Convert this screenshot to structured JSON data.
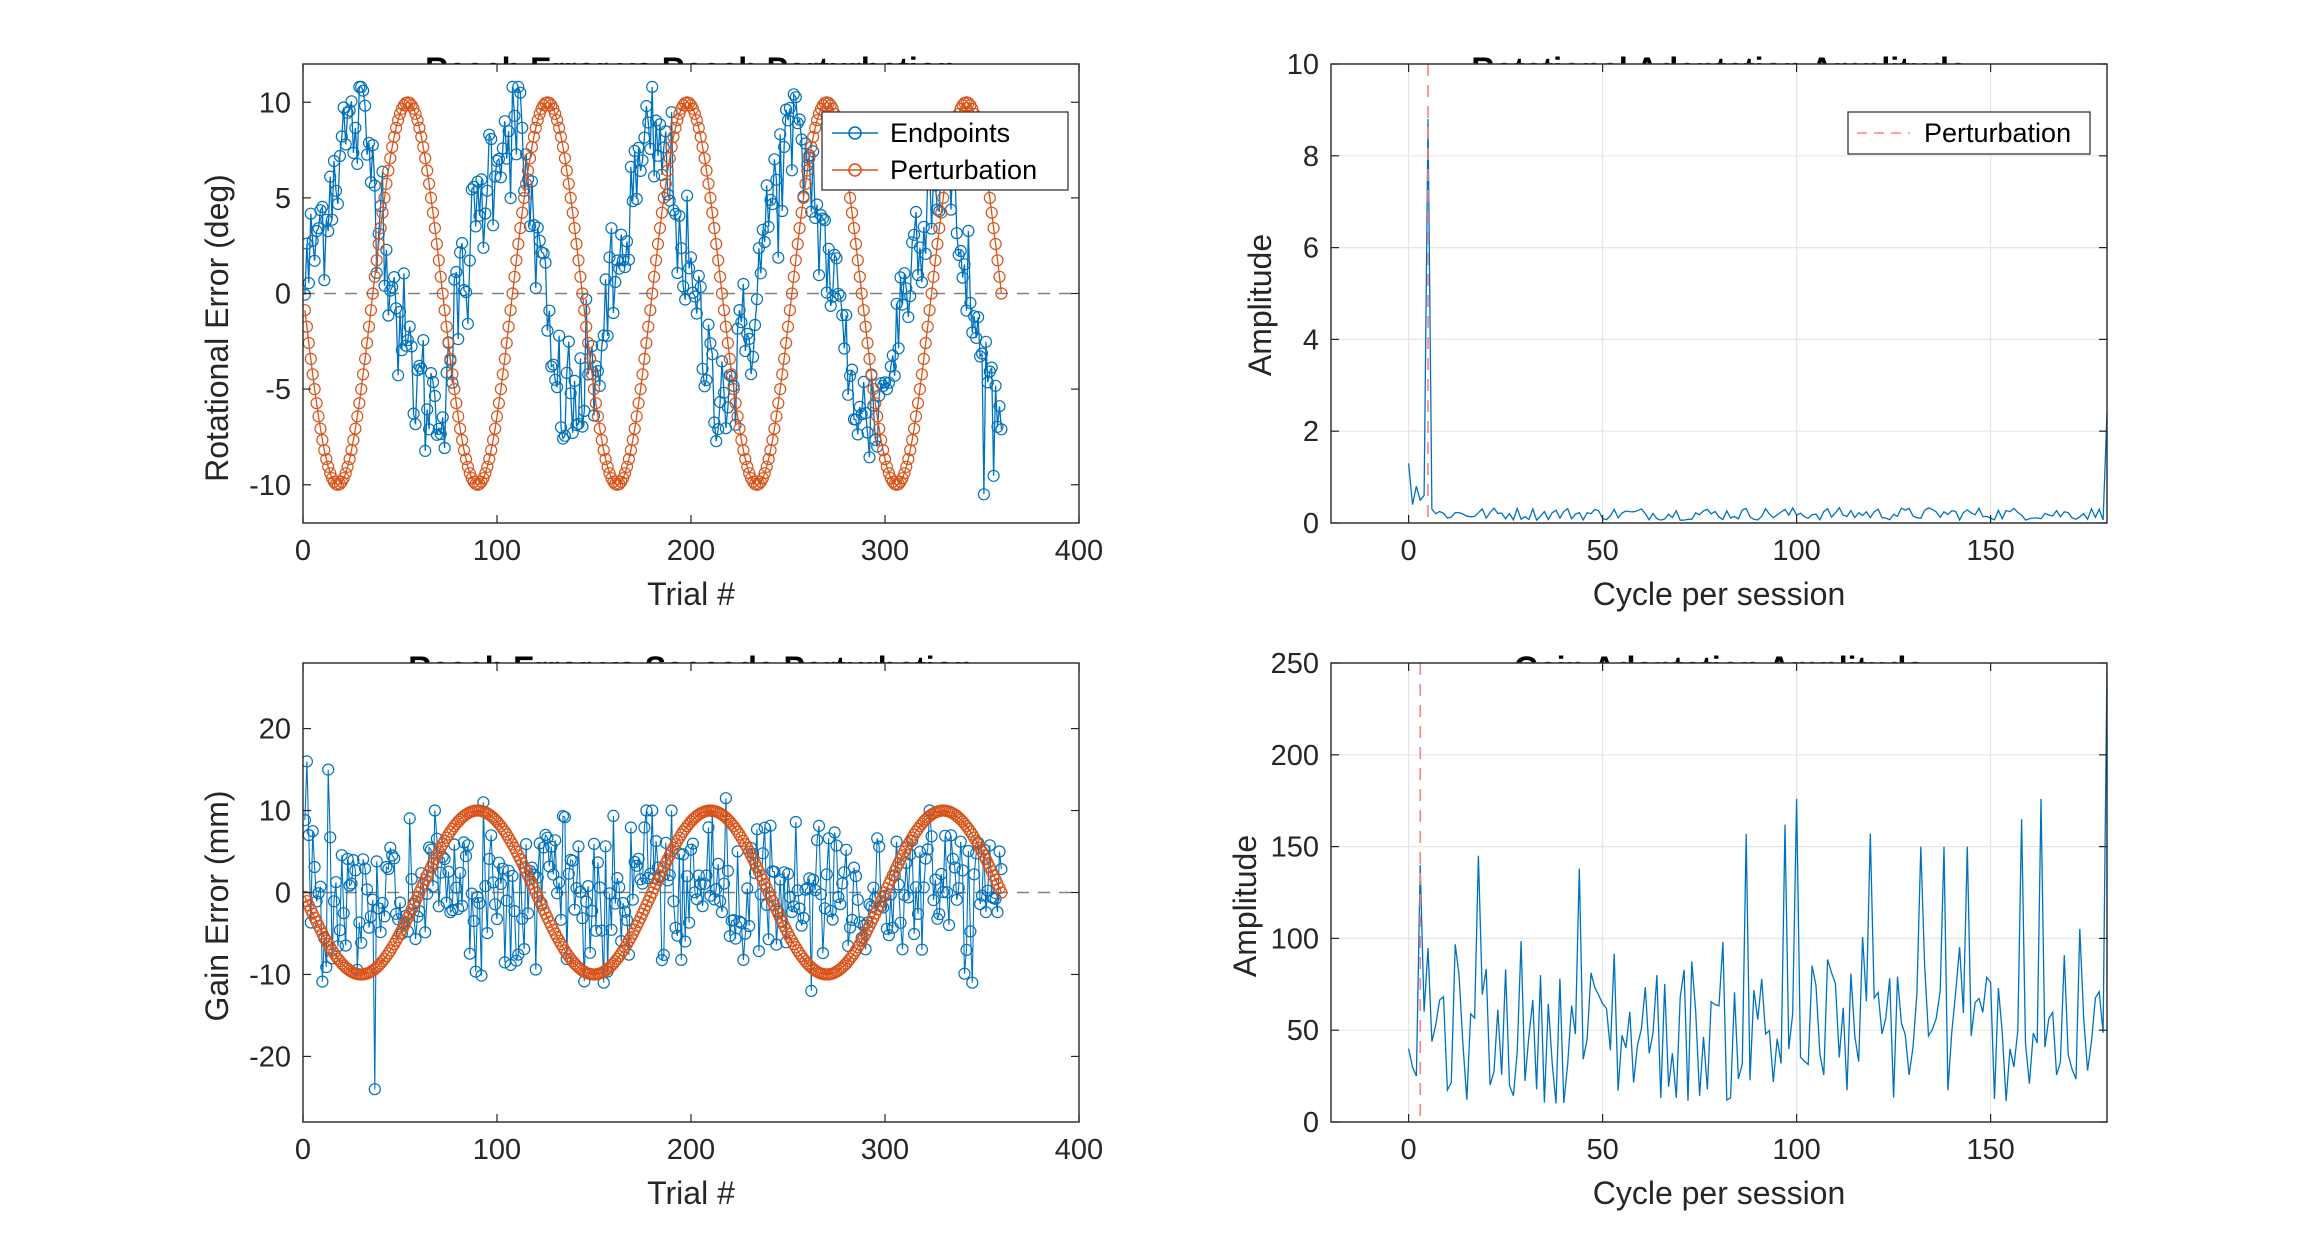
{
  "figure": {
    "panels": [
      {
        "id": "reach-error-vs-reach-perturbation",
        "title": "Reach Error vs Reach Perturbation"
      },
      {
        "id": "rotational-adaptation-amplitude",
        "title": "Rotational Adaptation Amplitude"
      },
      {
        "id": "reach-error-vs-saccade-perturbation",
        "title": "Reach Error vs Saccade Perturbation"
      },
      {
        "id": "gain-adaptation-amplitude",
        "title": "Gain Adaptation Amplitude"
      }
    ]
  },
  "colors": {
    "endpoints": "#0072BD",
    "perturbation": "#D95319",
    "perturbation_marker": "#FF8080",
    "zero_line": "#808080",
    "grid": "#E6E6E6"
  },
  "chart_data": [
    {
      "type": "line",
      "title": "Reach Error vs Reach Perturbation",
      "xlabel": "Trial #",
      "ylabel": "Rotational Error (deg)",
      "xlim": [
        0,
        400
      ],
      "ylim": [
        -12,
        12
      ],
      "xticks": [
        0,
        100,
        200,
        300,
        400
      ],
      "yticks": [
        -10,
        -5,
        0,
        5,
        10
      ],
      "grid": false,
      "legend": {
        "position": "top-right",
        "entries": [
          "Endpoints",
          "Perturbation"
        ]
      },
      "zero_reference": 0,
      "series": [
        {
          "name": "Endpoints",
          "style": "stem-with-circles",
          "x_range": [
            1,
            360
          ],
          "samples_x": [
            1,
            10,
            20,
            30,
            40,
            50,
            60,
            70,
            80,
            90,
            100,
            110,
            120,
            130,
            140,
            150,
            160,
            170,
            180,
            190,
            200,
            210,
            220,
            230,
            240,
            250,
            260,
            270,
            280,
            290,
            300,
            310,
            320,
            330,
            340,
            350,
            360
          ],
          "samples_y": [
            0.5,
            4,
            8,
            9,
            5,
            -2,
            -5,
            -6,
            -1,
            4,
            8,
            9,
            3,
            -5,
            -6,
            -4,
            0,
            5,
            8,
            6,
            0,
            -4,
            -5,
            -2,
            4,
            8,
            7,
            2,
            -3,
            -7,
            -5,
            0,
            5,
            7,
            2,
            -4,
            -7
          ]
        },
        {
          "name": "Perturbation",
          "style": "circles-with-line",
          "x_range": [
            1,
            360
          ],
          "amplitude": 10,
          "period_trials": 72,
          "equation": "-10*sin(2*pi*x/72)"
        }
      ]
    },
    {
      "type": "line",
      "title": "Rotational Adaptation Amplitude",
      "xlabel": "Cycle per session",
      "ylabel": "Amplitude",
      "xlim": [
        -20,
        180
      ],
      "ylim": [
        0,
        10
      ],
      "xticks": [
        0,
        50,
        100,
        150
      ],
      "yticks": [
        0,
        2,
        4,
        6,
        8,
        10
      ],
      "grid": true,
      "legend": {
        "position": "top-right",
        "entries": [
          "Perturbation"
        ]
      },
      "perturbation_line_x": 5,
      "series": [
        {
          "name": "",
          "x_range": [
            0,
            180
          ],
          "key_points": [
            [
              0,
              1.3
            ],
            [
              1,
              0.4
            ],
            [
              2,
              0.8
            ],
            [
              3,
              0.5
            ],
            [
              4,
              0.6
            ],
            [
              5,
              8.8
            ],
            [
              6,
              0.3
            ],
            [
              180,
              2.4
            ]
          ],
          "baseline_level": 0.2
        }
      ]
    },
    {
      "type": "line",
      "title": "Reach Error vs Saccade Perturbation",
      "xlabel": "Trial #",
      "ylabel": "Gain Error (mm)",
      "xlim": [
        0,
        400
      ],
      "ylim": [
        -28,
        28
      ],
      "xticks": [
        0,
        100,
        200,
        300,
        400
      ],
      "yticks": [
        -20,
        -10,
        0,
        10,
        20
      ],
      "grid": false,
      "zero_reference": 0,
      "series": [
        {
          "name": "Endpoints",
          "style": "stem-with-circles",
          "x_range": [
            1,
            360
          ],
          "noise_sd": 4.5,
          "notable_points": [
            [
              2,
              16
            ],
            [
              3,
              7
            ],
            [
              13,
              15
            ],
            [
              37,
              -24
            ],
            [
              93,
              11
            ],
            [
              218,
              11.5
            ],
            [
              262,
              -12
            ]
          ]
        },
        {
          "name": "Perturbation",
          "style": "circles-with-line",
          "x_range": [
            1,
            360
          ],
          "amplitude": 10,
          "period_trials": 120,
          "equation": "-10*sin(2*pi*x/120)"
        }
      ]
    },
    {
      "type": "line",
      "title": "Gain Adaptation Amplitude",
      "xlabel": "Cycle per session",
      "ylabel": "Amplitude",
      "xlim": [
        -20,
        180
      ],
      "ylim": [
        0,
        250
      ],
      "xticks": [
        0,
        50,
        100,
        150
      ],
      "yticks": [
        0,
        50,
        100,
        150,
        200,
        250
      ],
      "grid": true,
      "perturbation_line_x": 3,
      "series": [
        {
          "name": "",
          "x_range": [
            0,
            180
          ],
          "key_points": [
            [
              0,
              40
            ],
            [
              1,
              30
            ],
            [
              2,
              25
            ],
            [
              3,
              140
            ],
            [
              4,
              60
            ],
            [
              18,
              145
            ],
            [
              44,
              138
            ],
            [
              87,
              157
            ],
            [
              97,
              162
            ],
            [
              100,
              176
            ],
            [
              119,
              157
            ],
            [
              132,
              150
            ],
            [
              138,
              150
            ],
            [
              144,
              150
            ],
            [
              158,
              165
            ],
            [
              163,
              176
            ],
            [
              180,
              250
            ]
          ],
          "typical_range": [
            10,
            110
          ]
        }
      ]
    }
  ]
}
